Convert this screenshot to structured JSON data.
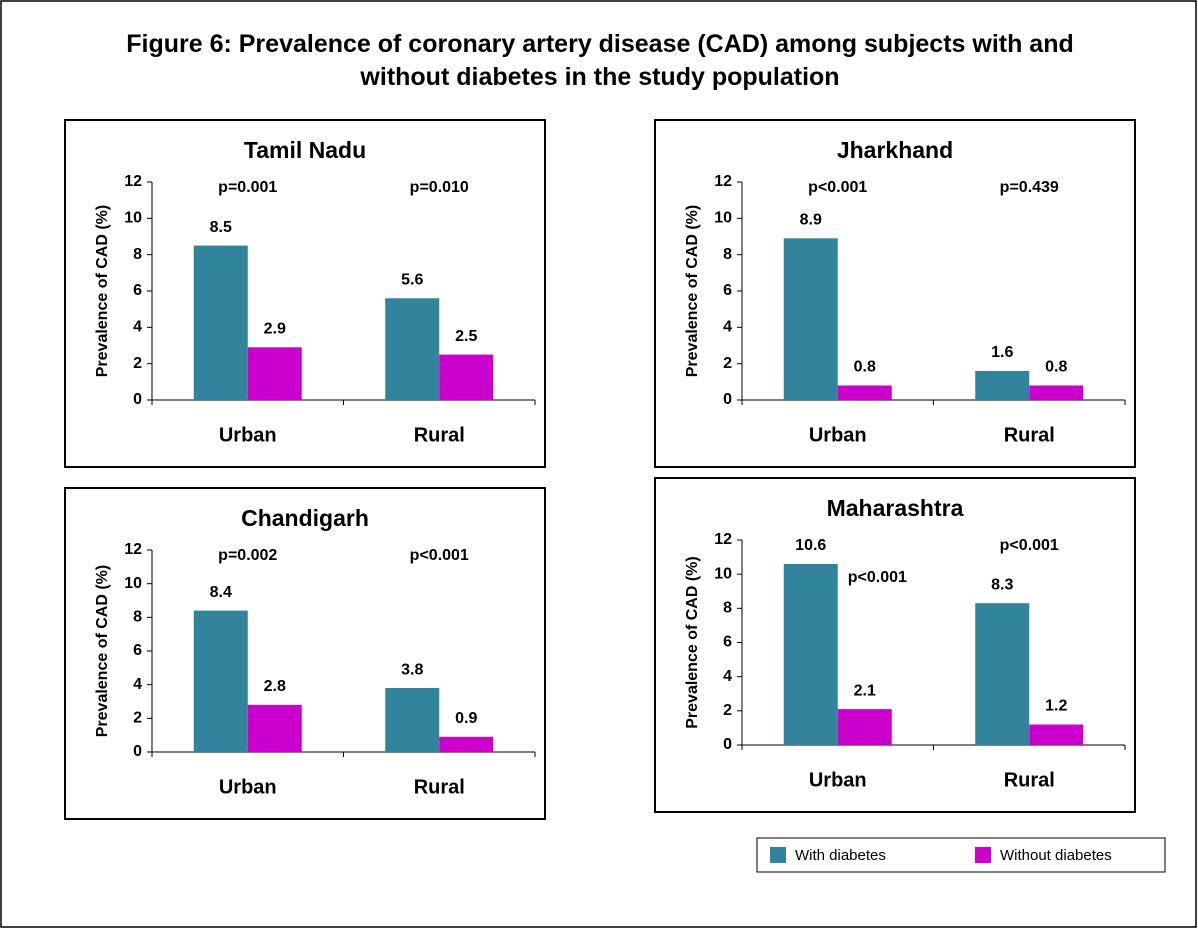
{
  "title": "Figure 6: Prevalence of coronary artery disease (CAD) among subjects with and without diabetes in the study population",
  "chart_data": [
    {
      "type": "bar",
      "title": "Tamil Nadu",
      "y_label": "Prevalence of CAD (%)",
      "categories": [
        "Urban",
        "Rural"
      ],
      "series": [
        {
          "name": "With diabetes",
          "color": "#31849b",
          "values": [
            8.5,
            5.6
          ]
        },
        {
          "name": "Without diabetes",
          "color": "#cc00cc",
          "values": [
            2.9,
            2.5
          ]
        }
      ],
      "annotations": [
        "p=0.001",
        "p=0.010"
      ],
      "ylim": [
        0,
        12
      ],
      "yticks": [
        0,
        2,
        4,
        6,
        8,
        10,
        12
      ]
    },
    {
      "type": "bar",
      "title": "Jharkhand",
      "y_label": "Prevalence of CAD (%)",
      "categories": [
        "Urban",
        "Rural"
      ],
      "series": [
        {
          "name": "With diabetes",
          "color": "#31849b",
          "values": [
            8.9,
            1.6
          ]
        },
        {
          "name": "Without diabetes",
          "color": "#cc00cc",
          "values": [
            0.8,
            0.8
          ]
        }
      ],
      "annotations": [
        "p<0.001",
        "p=0.439"
      ],
      "ylim": [
        0,
        12
      ],
      "yticks": [
        0,
        2,
        4,
        6,
        8,
        10,
        12
      ]
    },
    {
      "type": "bar",
      "title": "Chandigarh",
      "y_label": "Prevalence of CAD (%)",
      "categories": [
        "Urban",
        "Rural"
      ],
      "series": [
        {
          "name": "With diabetes",
          "color": "#31849b",
          "values": [
            8.4,
            3.8
          ]
        },
        {
          "name": "Without diabetes",
          "color": "#cc00cc",
          "values": [
            2.8,
            0.9
          ]
        }
      ],
      "annotations": [
        "p=0.002",
        "p<0.001"
      ],
      "ylim": [
        0,
        12
      ],
      "yticks": [
        0,
        2,
        4,
        6,
        8,
        10,
        12
      ]
    },
    {
      "type": "bar",
      "title": "Maharashtra",
      "y_label": "Prevalence of CAD (%)",
      "categories": [
        "Urban",
        "Rural"
      ],
      "series": [
        {
          "name": "With diabetes",
          "color": "#31849b",
          "values": [
            10.6,
            8.3
          ]
        },
        {
          "name": "Without diabetes",
          "color": "#cc00cc",
          "values": [
            2.1,
            1.2
          ]
        }
      ],
      "annotations": [
        "p<0.001",
        "p<0.001"
      ],
      "ylim": [
        0,
        12
      ],
      "yticks": [
        0,
        2,
        4,
        6,
        8,
        10,
        12
      ]
    }
  ]
}
